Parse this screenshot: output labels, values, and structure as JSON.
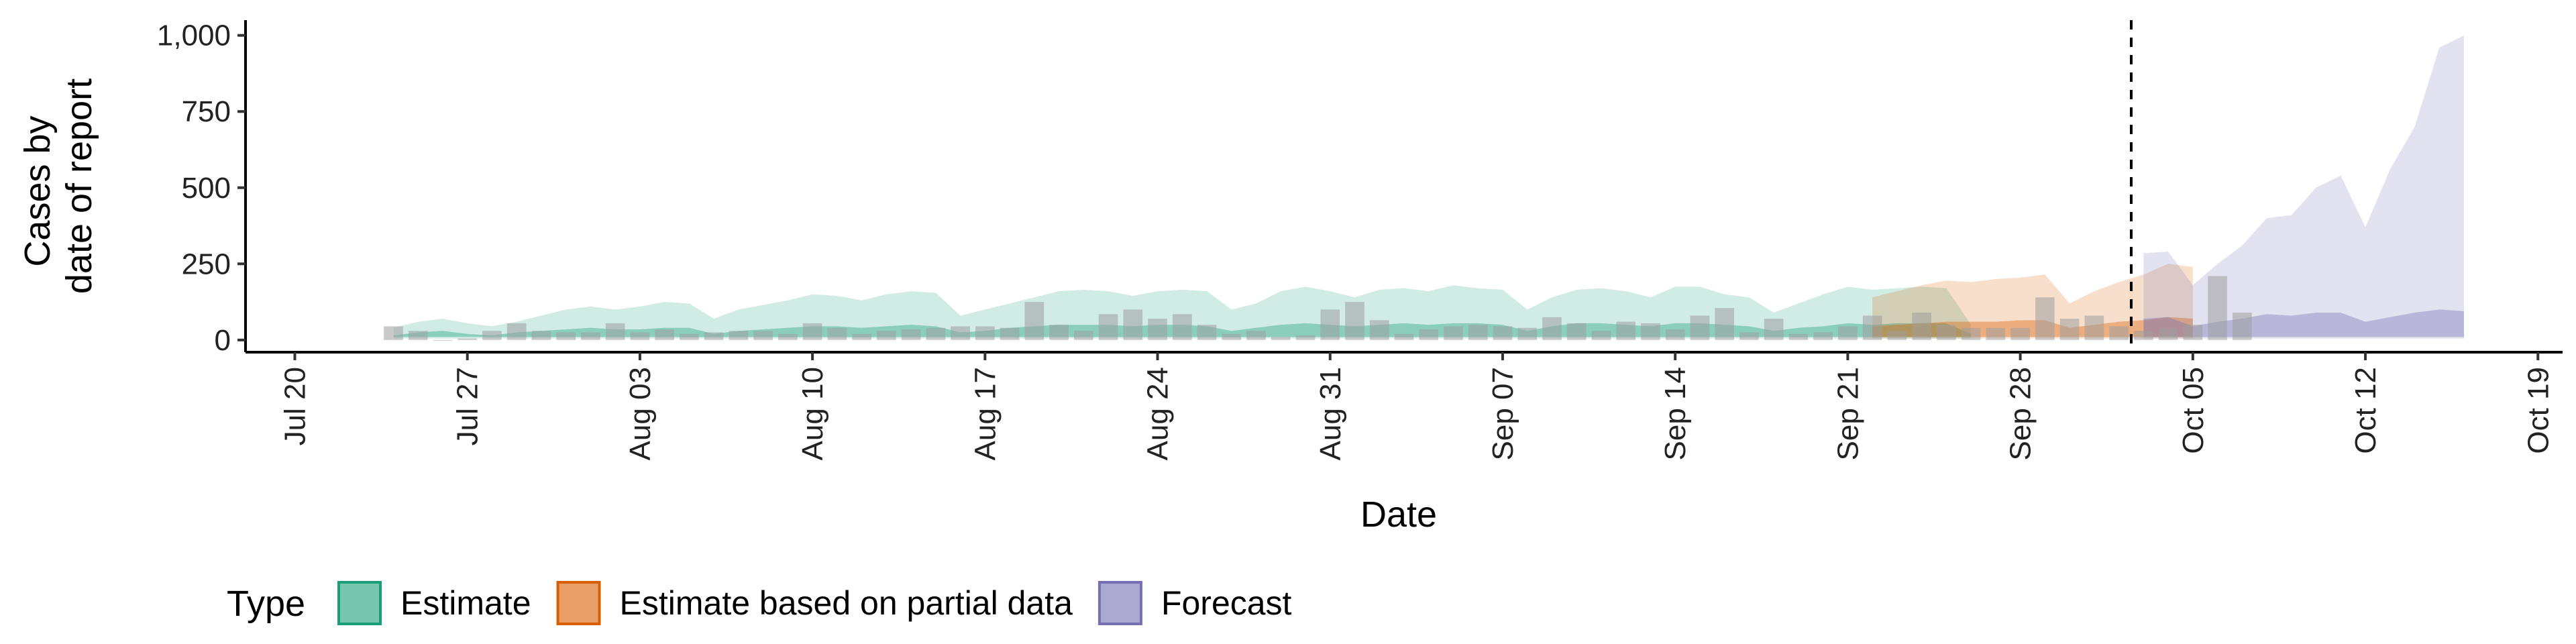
{
  "chart_data": {
    "type": "area",
    "xlabel": "Date",
    "ylabel_lines": [
      "Cases by",
      "date of report"
    ],
    "ylim": [
      -40,
      1050
    ],
    "xlim": [
      "2020-07-18",
      "2020-10-20"
    ],
    "x_ticks": [
      {
        "date": "2020-07-20",
        "label": "Jul 20"
      },
      {
        "date": "2020-07-27",
        "label": "Jul 27"
      },
      {
        "date": "2020-08-03",
        "label": "Aug 03"
      },
      {
        "date": "2020-08-10",
        "label": "Aug 10"
      },
      {
        "date": "2020-08-17",
        "label": "Aug 17"
      },
      {
        "date": "2020-08-24",
        "label": "Aug 24"
      },
      {
        "date": "2020-08-31",
        "label": "Aug 31"
      },
      {
        "date": "2020-09-07",
        "label": "Sep 07"
      },
      {
        "date": "2020-09-14",
        "label": "Sep 14"
      },
      {
        "date": "2020-09-21",
        "label": "Sep 21"
      },
      {
        "date": "2020-09-28",
        "label": "Sep 28"
      },
      {
        "date": "2020-10-05",
        "label": "Oct 05"
      },
      {
        "date": "2020-10-12",
        "label": "Oct 12"
      },
      {
        "date": "2020-10-19",
        "label": "Oct 19"
      }
    ],
    "y_ticks": [
      {
        "value": 0,
        "label": "0"
      },
      {
        "value": 250,
        "label": "250"
      },
      {
        "value": 500,
        "label": "500"
      },
      {
        "value": 750,
        "label": "750"
      },
      {
        "value": 1000,
        "label": "1,000"
      }
    ],
    "vline_date": "2020-10-02",
    "legend": {
      "title": "Type",
      "position": "bottom",
      "items": [
        {
          "label": "Estimate",
          "fill": "#1b9e77",
          "stroke": "#1b9e77"
        },
        {
          "label": "Estimate based on partial data",
          "fill": "#d95f02",
          "stroke": "#d95f02"
        },
        {
          "label": "Forecast",
          "fill": "#7570b3",
          "stroke": "#7570b3"
        }
      ]
    },
    "bars": {
      "color": "#9e9e9e",
      "start_date": "2020-07-24",
      "values": [
        45,
        30,
        0,
        5,
        30,
        55,
        30,
        25,
        25,
        55,
        25,
        35,
        20,
        25,
        30,
        30,
        20,
        55,
        40,
        20,
        30,
        35,
        40,
        45,
        45,
        40,
        125,
        50,
        30,
        85,
        100,
        70,
        85,
        50,
        20,
        30,
        10,
        15,
        100,
        125,
        65,
        20,
        35,
        45,
        50,
        45,
        40,
        75,
        55,
        30,
        60,
        55,
        35,
        80,
        105,
        25,
        70,
        20,
        25,
        45,
        80,
        30,
        90,
        50,
        40,
        40,
        40,
        140,
        70,
        80,
        45,
        30,
        40,
        50,
        210,
        90
      ]
    },
    "series": [
      {
        "name": "Estimate",
        "color": "#1b9e77",
        "start_date": "2020-07-24",
        "outer_upper": [
          40,
          60,
          70,
          55,
          45,
          60,
          80,
          100,
          110,
          100,
          110,
          125,
          120,
          70,
          100,
          115,
          130,
          150,
          145,
          130,
          150,
          160,
          155,
          80,
          100,
          120,
          140,
          160,
          165,
          160,
          145,
          160,
          165,
          160,
          100,
          120,
          160,
          175,
          160,
          140,
          165,
          170,
          160,
          180,
          170,
          165,
          100,
          140,
          165,
          170,
          160,
          140,
          175,
          175,
          150,
          140,
          90,
          120,
          150,
          175,
          165,
          170,
          175,
          170,
          50
        ],
        "outer_lower": [
          5,
          5,
          5,
          5,
          5,
          5,
          5,
          5,
          5,
          5,
          5,
          5,
          5,
          5,
          5,
          5,
          5,
          5,
          5,
          5,
          5,
          5,
          5,
          5,
          5,
          5,
          5,
          5,
          5,
          5,
          5,
          5,
          5,
          5,
          5,
          5,
          5,
          5,
          5,
          5,
          5,
          5,
          5,
          5,
          5,
          5,
          5,
          5,
          5,
          5,
          5,
          5,
          5,
          5,
          5,
          5,
          5,
          5,
          5,
          5,
          5,
          5,
          5,
          5,
          5
        ],
        "inner_upper": [
          15,
          25,
          30,
          20,
          15,
          25,
          30,
          35,
          40,
          35,
          35,
          40,
          40,
          20,
          30,
          35,
          40,
          45,
          45,
          40,
          45,
          50,
          45,
          25,
          30,
          40,
          45,
          50,
          50,
          50,
          45,
          50,
          50,
          45,
          30,
          40,
          50,
          55,
          50,
          45,
          50,
          55,
          50,
          55,
          55,
          50,
          30,
          45,
          55,
          55,
          50,
          45,
          55,
          55,
          50,
          45,
          30,
          40,
          45,
          55,
          50,
          55,
          55,
          55,
          20
        ],
        "inner_lower": [
          10,
          10,
          10,
          10,
          10,
          10,
          10,
          10,
          10,
          10,
          10,
          10,
          10,
          10,
          10,
          10,
          10,
          10,
          10,
          10,
          10,
          10,
          10,
          10,
          10,
          10,
          10,
          10,
          10,
          10,
          10,
          10,
          10,
          10,
          10,
          10,
          10,
          10,
          10,
          10,
          10,
          10,
          10,
          10,
          10,
          10,
          10,
          10,
          10,
          10,
          10,
          10,
          10,
          10,
          10,
          10,
          10,
          10,
          10,
          10,
          10,
          10,
          10,
          10,
          10
        ]
      },
      {
        "name": "Estimate based on partial data",
        "color": "#d95f02",
        "start_date": "2020-09-22",
        "outer_upper": [
          140,
          160,
          180,
          195,
          190,
          200,
          205,
          215,
          120,
          160,
          190,
          215,
          250,
          240
        ],
        "outer_lower": [
          5,
          5,
          5,
          5,
          5,
          5,
          5,
          5,
          5,
          5,
          5,
          5,
          5,
          5
        ],
        "inner_upper": [
          45,
          50,
          55,
          60,
          60,
          60,
          65,
          65,
          40,
          50,
          60,
          65,
          75,
          70
        ],
        "inner_lower": [
          10,
          10,
          10,
          10,
          10,
          10,
          10,
          10,
          10,
          10,
          10,
          10,
          10,
          10
        ]
      },
      {
        "name": "Forecast",
        "color": "#7570b3",
        "start_date": "2020-10-03",
        "outer_upper": [
          285,
          290,
          180,
          250,
          310,
          400,
          410,
          500,
          540,
          370,
          560,
          700,
          960,
          1000
        ],
        "outer_lower": [
          5,
          5,
          5,
          5,
          5,
          5,
          5,
          5,
          5,
          5,
          5,
          5,
          5,
          5
        ],
        "inner_upper": [
          70,
          75,
          45,
          60,
          70,
          85,
          80,
          90,
          90,
          60,
          75,
          90,
          100,
          95
        ],
        "inner_lower": [
          10,
          10,
          10,
          10,
          10,
          10,
          10,
          10,
          10,
          10,
          10,
          10,
          10,
          10
        ]
      }
    ]
  }
}
